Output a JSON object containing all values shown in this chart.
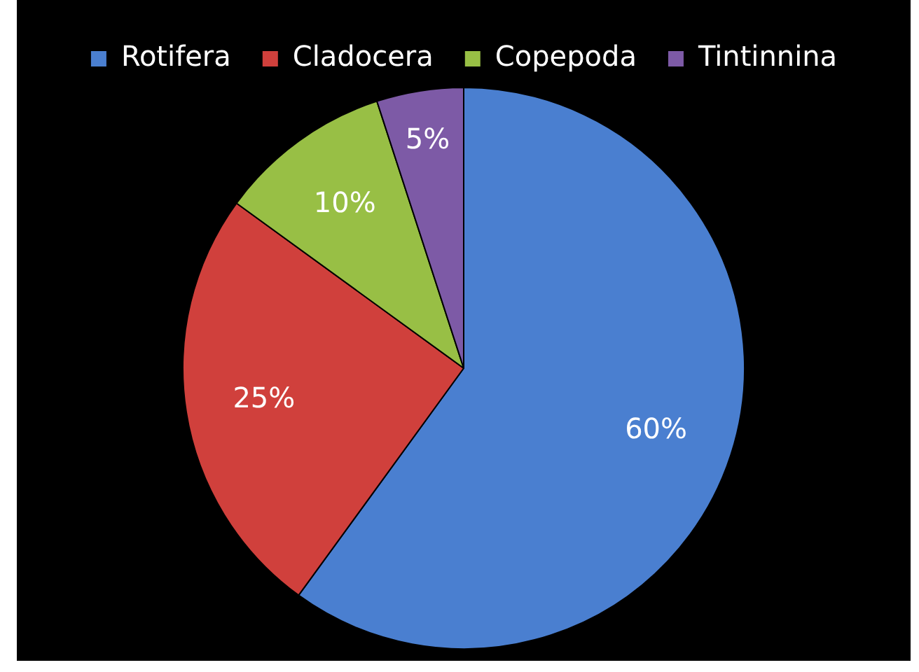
{
  "chart_data": {
    "type": "pie",
    "categories": [
      "Rotifera",
      "Cladocera",
      "Copepoda",
      "Tintinnina"
    ],
    "values": [
      60,
      25,
      10,
      5
    ],
    "colors": [
      "#4a7fd0",
      "#d0403c",
      "#98bf45",
      "#7d5aa6"
    ],
    "value_labels": [
      "60%",
      "25%",
      "10%",
      "5%"
    ],
    "legend": "top"
  }
}
